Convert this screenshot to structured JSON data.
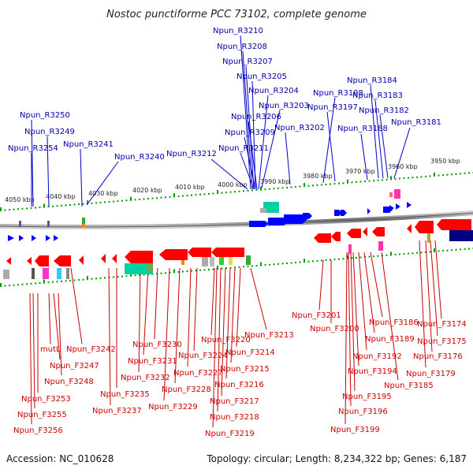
{
  "title": "Nostoc punctiforme PCC 73102, complete genome",
  "footer": {
    "accession": "Accession: NC_010628",
    "summary": "Topology: circular; Length: 8,234,322 bp; Genes: 6,187"
  },
  "ticks": [
    "4050 kbp",
    "4040 kbp",
    "4030 kbp",
    "4020 kbp",
    "4010 kbp",
    "4000 kbp",
    "3990 kbp",
    "3980 kbp",
    "3970 kbp",
    "3960 kbp",
    "3950 kbp"
  ],
  "reverse_labels": [
    "Npun_R3210",
    "Npun_R3208",
    "Npun_R3207",
    "Npun_R3205",
    "Npun_R3204",
    "Npun_R3203",
    "Npun_R3206",
    "Npun_R3209",
    "Npun_R3211",
    "Npun_R3212",
    "Npun_R3202",
    "Npun_R3198",
    "Npun_R3197",
    "Npun_R3184",
    "Npun_R3183",
    "Npun_R3182",
    "Npun_R3188",
    "Npun_R3181",
    "Npun_R3250",
    "Npun_R3249",
    "Npun_R3254",
    "Npun_R3241",
    "Npun_R3240"
  ],
  "forward_labels": [
    "Npun_F3213",
    "Npun_F3214",
    "Npun_F3215",
    "Npun_F3216",
    "Npun_F3217",
    "Npun_F3218",
    "Npun_F3219",
    "Npun_F3220",
    "Npun_F3224",
    "Npun_F3227",
    "Npun_F3228",
    "Npun_F3229",
    "Npun_F3230",
    "Npun_F3231",
    "Npun_F3232",
    "Npun_F3235",
    "Npun_F3237",
    "Npun_F3242",
    "mutL",
    "Npun_F3247",
    "Npun_F3248",
    "Npun_F3253",
    "Npun_F3255",
    "Npun_F3256",
    "Npun_F3201",
    "Npun_F3200",
    "Npun_F3186",
    "Npun_F3189",
    "Npun_F3192",
    "Npun_F3194",
    "Npun_F3195",
    "Npun_F3196",
    "Npun_F3199",
    "Npun_F3185",
    "Npun_F3174",
    "Npun_F3175",
    "Npun_F3176",
    "Npun_F3179"
  ],
  "colors": {
    "reverse": "#0000ff",
    "forward": "#ff0000",
    "backbone": "#888888",
    "tickmark": "#009900"
  }
}
